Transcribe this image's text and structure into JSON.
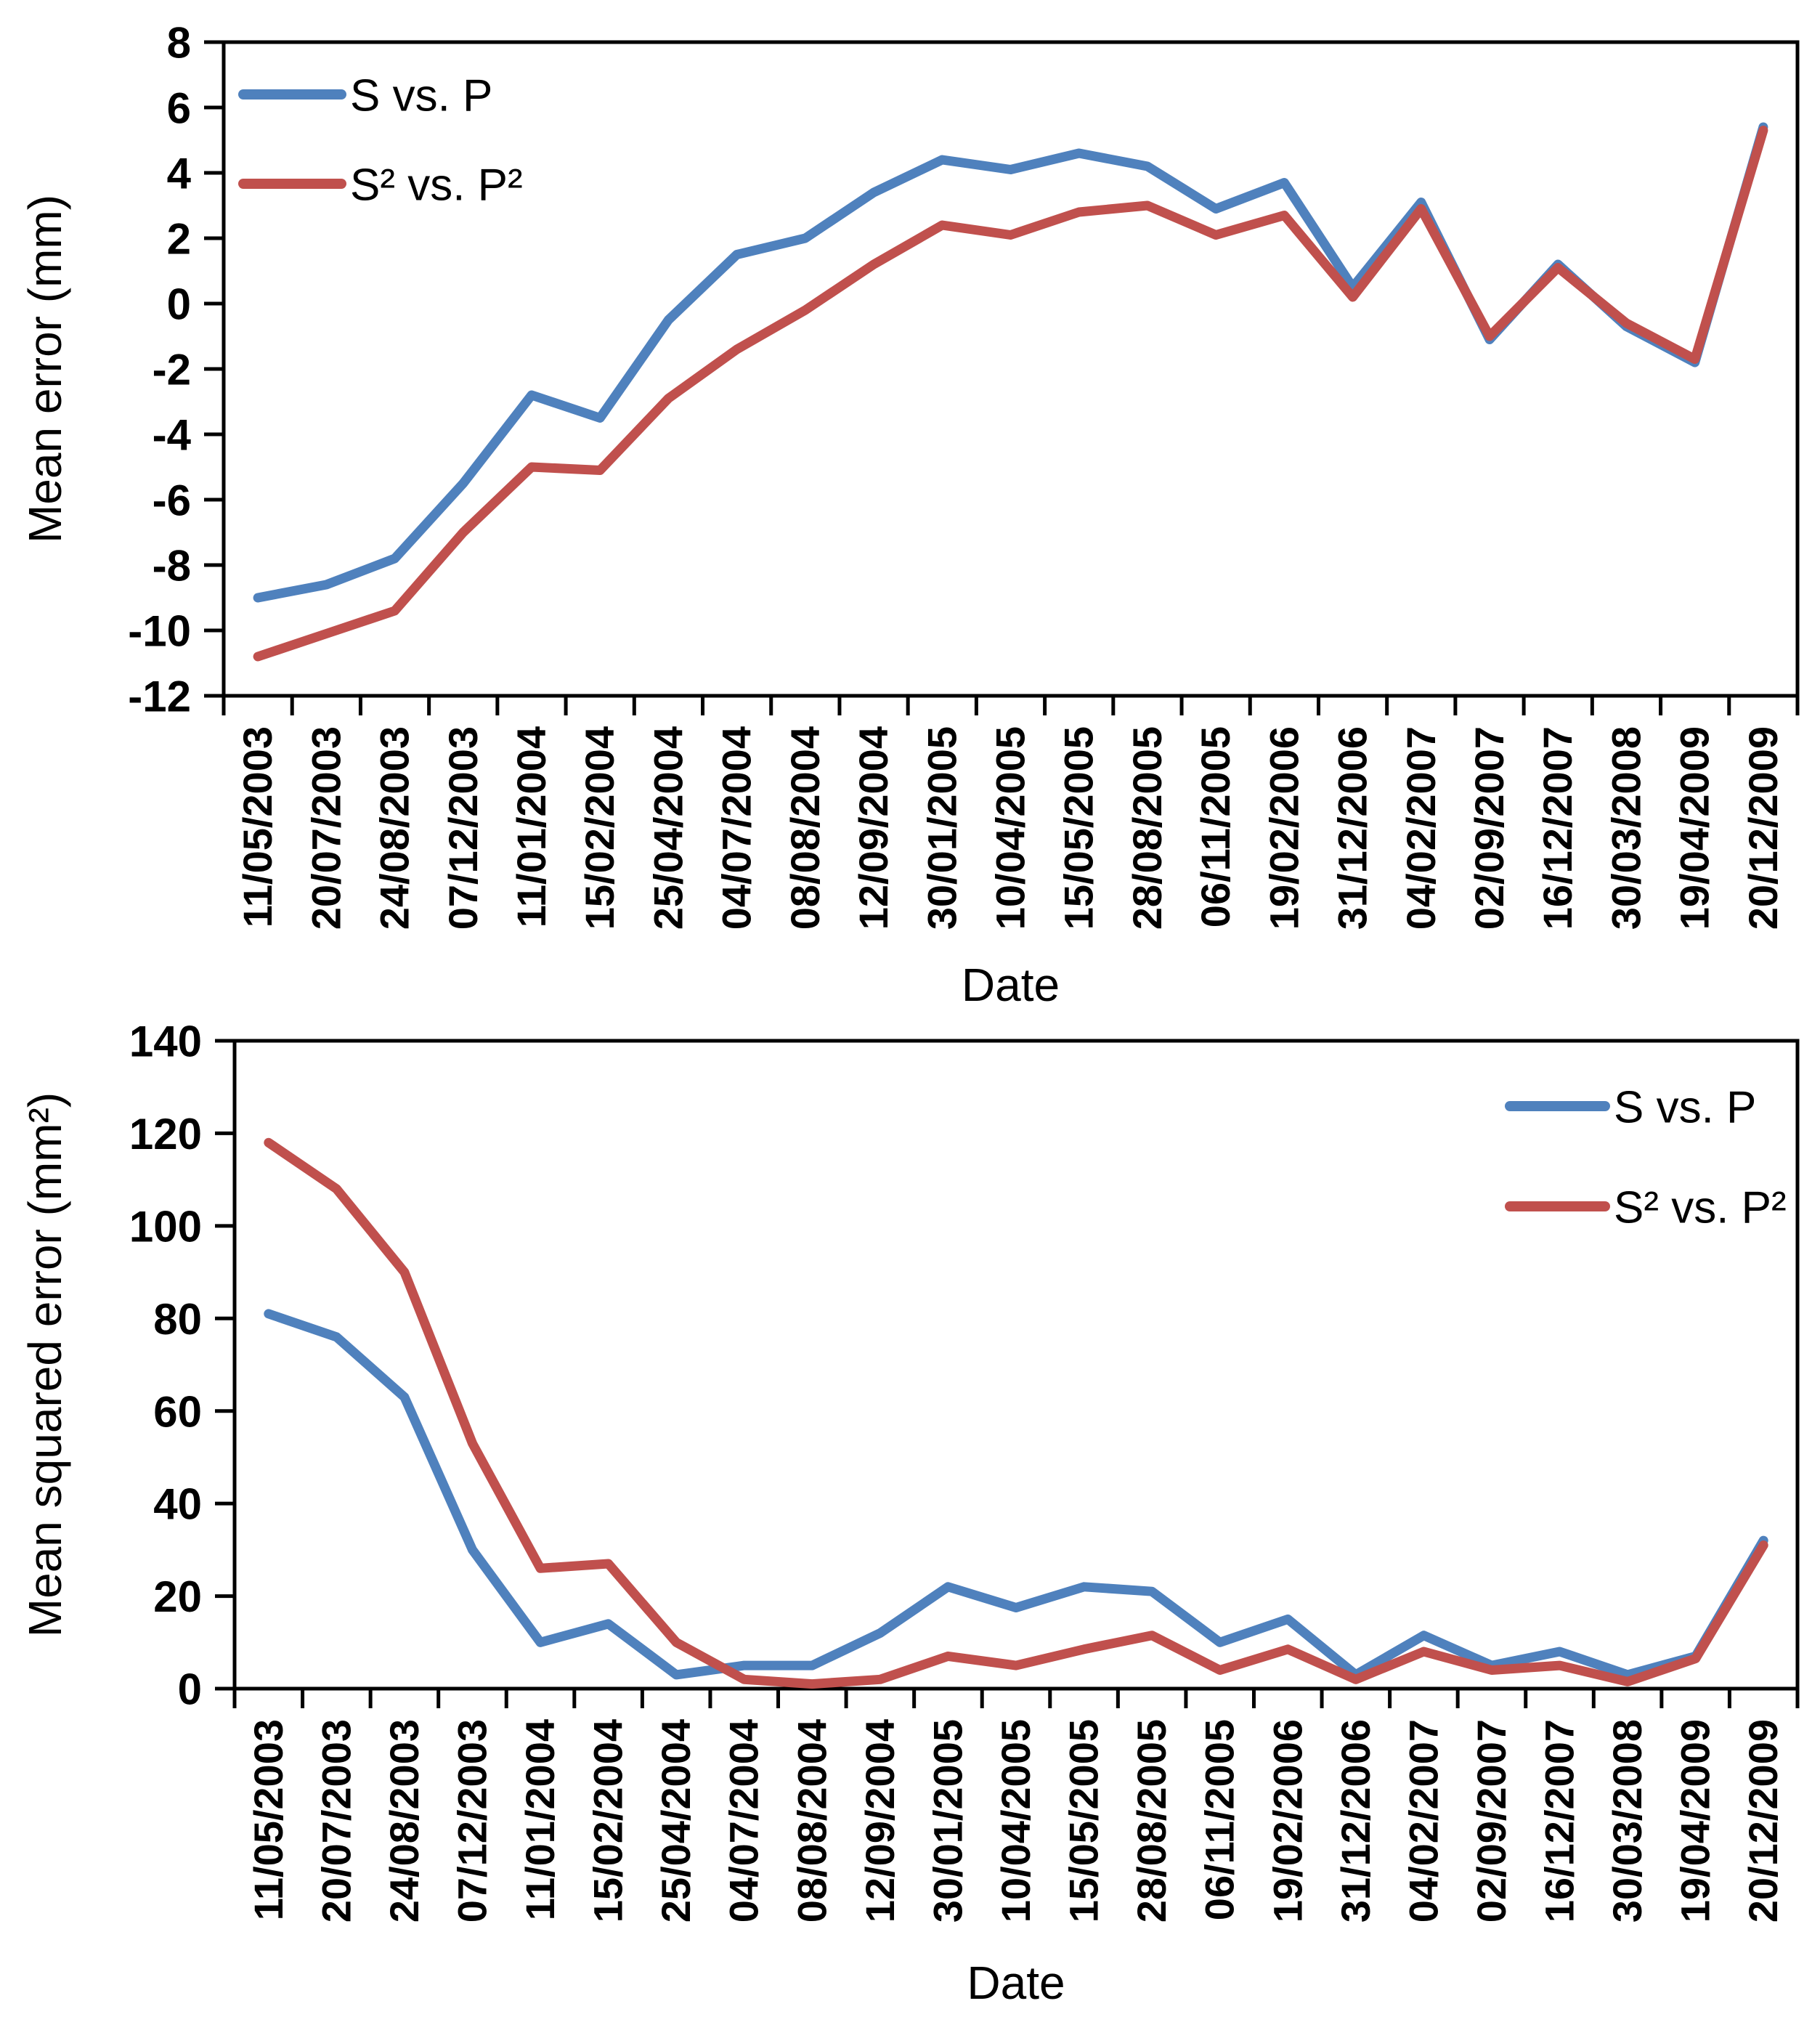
{
  "figure": {
    "background": "#ffffff",
    "axis_color": "#000000",
    "n_points": 23
  },
  "chart_data": [
    {
      "type": "line",
      "title": "",
      "xlabel": "Date",
      "ylabel": "Mean error (mm)",
      "ylim": [
        -12,
        8
      ],
      "ytick_step": 2,
      "yticks": [
        "8",
        "6",
        "4",
        "2",
        "0",
        "-2",
        "-4",
        "-6",
        "-8",
        "-10",
        "-12"
      ],
      "grid": false,
      "legend_position": "top-left",
      "categories": [
        "11/05/2003",
        "20/07/2003",
        "24/08/2003",
        "07/12/2003",
        "11/01/2004",
        "15/02/2004",
        "25/04/2004",
        "04/07/2004",
        "08/08/2004",
        "12/09/2004",
        "30/01/2005",
        "10/04/2005",
        "15/05/2005",
        "28/08/2005",
        "06/11/2005",
        "19/02/2006",
        "31/12/2006",
        "04/02/2007",
        "02/09/2007",
        "16/12/2007",
        "30/03/2008",
        "19/04/2009",
        "20/12/2009"
      ],
      "series": [
        {
          "name": "S vs. P",
          "color": "#4F81BD",
          "values": [
            -9.0,
            -8.6,
            -7.8,
            -5.5,
            -2.8,
            -3.5,
            -0.5,
            1.5,
            2.0,
            3.4,
            4.4,
            4.1,
            4.6,
            4.2,
            2.9,
            3.7,
            0.5,
            3.1,
            -1.1,
            1.2,
            -0.7,
            -1.8,
            5.4
          ]
        },
        {
          "name": "S² vs. P²",
          "color": "#C0504D",
          "values": [
            -10.8,
            -10.1,
            -9.4,
            -7.0,
            -5.0,
            -5.1,
            -2.9,
            -1.4,
            -0.2,
            1.2,
            2.4,
            2.1,
            2.8,
            3.0,
            2.1,
            2.7,
            0.2,
            2.9,
            -1.0,
            1.1,
            -0.6,
            -1.7,
            5.3
          ]
        }
      ]
    },
    {
      "type": "line",
      "title": "",
      "xlabel": "Date",
      "ylabel": "Mean squared error (mm²)",
      "ylim": [
        0,
        140
      ],
      "ytick_step": 20,
      "yticks": [
        "140",
        "120",
        "100",
        "80",
        "60",
        "40",
        "20",
        "0"
      ],
      "grid": false,
      "legend_position": "top-right",
      "categories": [
        "11/05/2003",
        "20/07/2003",
        "24/08/2003",
        "07/12/2003",
        "11/01/2004",
        "15/02/2004",
        "25/04/2004",
        "04/07/2004",
        "08/08/2004",
        "12/09/2004",
        "30/01/2005",
        "10/04/2005",
        "15/05/2005",
        "28/08/2005",
        "06/11/2005",
        "19/02/2006",
        "31/12/2006",
        "04/02/2007",
        "02/09/2007",
        "16/12/2007",
        "30/03/2008",
        "19/04/2009",
        "20/12/2009"
      ],
      "series": [
        {
          "name": "S vs. P",
          "color": "#4F81BD",
          "values": [
            81,
            76,
            63,
            30,
            10,
            14,
            3,
            5,
            5,
            12,
            22,
            17.5,
            22,
            21,
            10,
            15,
            3,
            11.5,
            5,
            8,
            3,
            7,
            32
          ]
        },
        {
          "name": "S² vs. P²",
          "color": "#C0504D",
          "values": [
            118,
            108,
            90,
            53,
            26,
            27,
            10,
            2,
            1,
            2,
            7,
            5,
            8.5,
            11.5,
            4,
            8.5,
            2,
            8,
            4,
            5,
            1.5,
            6.5,
            31
          ]
        }
      ]
    }
  ]
}
